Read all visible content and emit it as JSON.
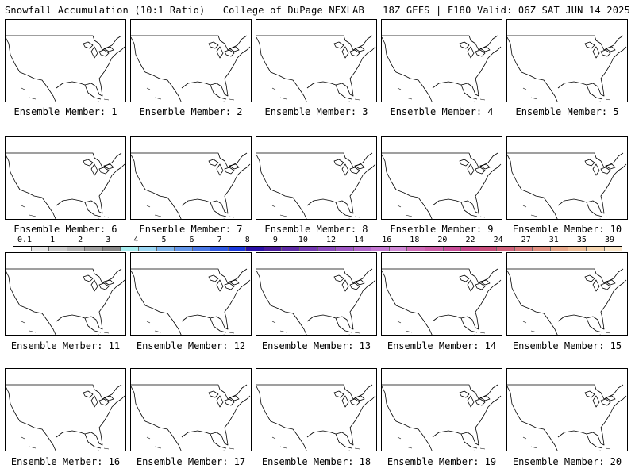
{
  "header": {
    "left": "Snowfall Accumulation (10:1 Ratio) | College of DuPage NEXLAB",
    "right": "18Z GEFS | F180 Valid: 06Z SAT JUN 14 2025"
  },
  "members": [
    {
      "label": "Ensemble Member: 1"
    },
    {
      "label": "Ensemble Member: 2"
    },
    {
      "label": "Ensemble Member: 3"
    },
    {
      "label": "Ensemble Member: 4"
    },
    {
      "label": "Ensemble Member: 5"
    },
    {
      "label": "Ensemble Member: 6"
    },
    {
      "label": "Ensemble Member: 7"
    },
    {
      "label": "Ensemble Member: 8"
    },
    {
      "label": "Ensemble Member: 9"
    },
    {
      "label": "Ensemble Member: 10"
    },
    {
      "label": "Ensemble Member: 11"
    },
    {
      "label": "Ensemble Member: 12"
    },
    {
      "label": "Ensemble Member: 13"
    },
    {
      "label": "Ensemble Member: 14"
    },
    {
      "label": "Ensemble Member: 15"
    },
    {
      "label": "Ensemble Member: 16"
    },
    {
      "label": "Ensemble Member: 17"
    },
    {
      "label": "Ensemble Member: 18"
    },
    {
      "label": "Ensemble Member: 19"
    },
    {
      "label": "Ensemble Member: 20"
    }
  ],
  "colorbar": {
    "ticks": [
      "0.1",
      "1",
      "2",
      "3",
      "4",
      "5",
      "6",
      "7",
      "8",
      "9",
      "10",
      "12",
      "14",
      "16",
      "18",
      "20",
      "22",
      "24",
      "27",
      "31",
      "35",
      "39"
    ],
    "colors": [
      "#ffffff",
      "#e6e6e6",
      "#cfcfcf",
      "#b8b8b8",
      "#a0a0a0",
      "#888888",
      "#a8eef0",
      "#9cd8f5",
      "#7fb6ee",
      "#6497ea",
      "#4a78e6",
      "#2f58e2",
      "#1a38de",
      "#2a10a8",
      "#4a1a9c",
      "#5e2aa6",
      "#7438b2",
      "#8a48bc",
      "#9e56c4",
      "#b266cc",
      "#c478d2",
      "#d088d6",
      "#cf6ab8",
      "#cc5ca8",
      "#c84c98",
      "#c44488",
      "#c84c7a",
      "#d0607a",
      "#d8787c",
      "#e09080",
      "#e8a88a",
      "#f0c09a",
      "#f6d6b0",
      "#fae6c8"
    ]
  }
}
